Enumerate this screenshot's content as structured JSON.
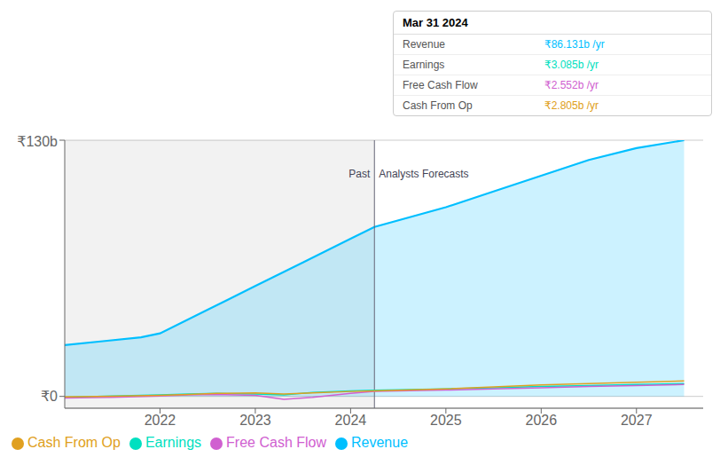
{
  "chart_data": {
    "type": "line",
    "xlim": [
      2021.0,
      2027.7
    ],
    "xticks": [
      2022,
      2023,
      2024,
      2025,
      2026,
      2027
    ],
    "ylim": [
      -6,
      130
    ],
    "yticks": [
      {
        "value": 0,
        "label": "₹0"
      },
      {
        "value": 130,
        "label": "₹130b"
      }
    ],
    "grid": true,
    "legend": "bottom",
    "tick_labels": true,
    "series": [
      {
        "name": "Revenue",
        "type": "area",
        "color": "#00bfff",
        "x": [
          2021.0,
          2021.4,
          2021.8,
          2022.0,
          2022.5,
          2023.0,
          2023.5,
          2024.0,
          2024.25,
          2025.0,
          2025.5,
          2026.0,
          2026.5,
          2027.0,
          2027.5
        ],
        "values": [
          26,
          28,
          30,
          32,
          44,
          56,
          68,
          80,
          86,
          96,
          104,
          112,
          120,
          126,
          130
        ]
      },
      {
        "name": "Earnings",
        "type": "line",
        "color": "#00e0c0",
        "x": [
          2021.0,
          2021.5,
          2022.0,
          2022.3,
          2022.6,
          2023.0,
          2023.3,
          2023.6,
          2024.0,
          2024.25,
          2025.0,
          2025.5,
          2026.0,
          2026.5,
          2027.0,
          2027.5
        ],
        "values": [
          -0.5,
          0.2,
          0.8,
          1.2,
          1.5,
          1.2,
          0.8,
          2.0,
          2.8,
          3.085,
          3.8,
          4.4,
          5.0,
          5.5,
          6.0,
          6.5
        ]
      },
      {
        "name": "Free Cash Flow",
        "type": "line",
        "color": "#d060d0",
        "x": [
          2021.0,
          2021.5,
          2022.0,
          2022.3,
          2022.6,
          2023.0,
          2023.3,
          2023.6,
          2024.0,
          2024.25,
          2025.0,
          2025.5,
          2026.0,
          2026.5,
          2027.0,
          2027.5
        ],
        "values": [
          -0.8,
          -0.5,
          0.2,
          0.8,
          1.0,
          0.5,
          -1.5,
          -0.5,
          1.5,
          2.552,
          3.2,
          3.8,
          4.4,
          5.0,
          5.5,
          6.0
        ]
      },
      {
        "name": "Cash From Op",
        "type": "line",
        "color": "#e0a020",
        "x": [
          2021.0,
          2021.5,
          2022.0,
          2022.3,
          2022.6,
          2023.0,
          2023.3,
          2023.6,
          2024.0,
          2024.25,
          2025.0,
          2025.5,
          2026.0,
          2026.5,
          2027.0,
          2027.5
        ],
        "values": [
          -0.3,
          0.1,
          0.5,
          1.0,
          1.5,
          1.8,
          1.2,
          1.8,
          2.5,
          2.805,
          3.8,
          4.8,
          5.8,
          6.5,
          7.2,
          7.8
        ]
      }
    ],
    "annotations": [
      {
        "text": "Past",
        "x": 2024.25,
        "y": 113,
        "side": "left"
      },
      {
        "text": "Analysts Forecasts",
        "x": 2024.25,
        "y": 113,
        "side": "right"
      }
    ],
    "tooltip": {
      "title": "Mar 31 2024",
      "rows": [
        {
          "label": "Revenue",
          "value": "₹86.131b /yr",
          "color": "#00bfff"
        },
        {
          "label": "Earnings",
          "value": "₹3.085b /yr",
          "color": "#00e0c0"
        },
        {
          "label": "Free Cash Flow",
          "value": "₹2.552b /yr",
          "color": "#d060d0"
        },
        {
          "label": "Cash From Op",
          "value": "₹2.805b /yr",
          "color": "#e0a020"
        }
      ]
    }
  }
}
